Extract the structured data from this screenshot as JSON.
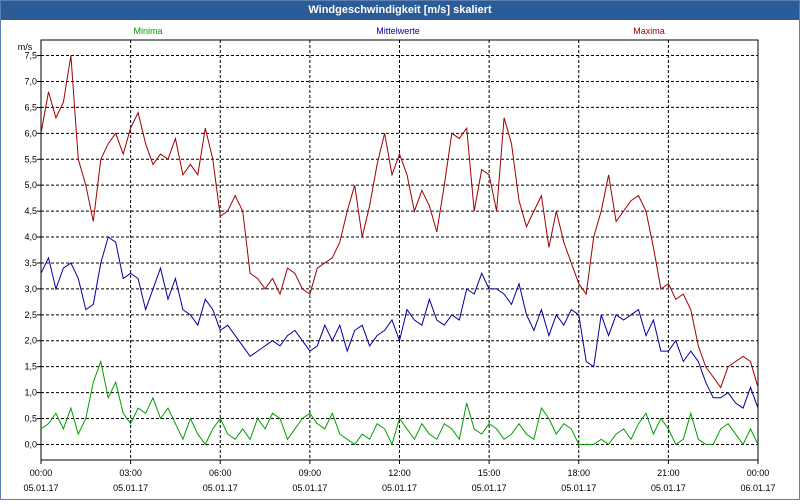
{
  "window": {
    "title": "Windgeschwindigkeit [m/s] skaliert"
  },
  "chart_data": {
    "type": "line",
    "ylabel": "m/s",
    "ylim": [
      -0.3,
      7.8
    ],
    "yticks": [
      "0,0",
      "0,5",
      "1,0",
      "1,5",
      "2,0",
      "2,5",
      "3,0",
      "3,5",
      "4,0",
      "4,5",
      "5,0",
      "5,5",
      "6,0",
      "6,5",
      "7,0",
      "7,5"
    ],
    "xticks": [
      {
        "time": "00:00",
        "date": "05.01.17"
      },
      {
        "time": "03:00",
        "date": "05.01.17"
      },
      {
        "time": "06:00",
        "date": "05.01.17"
      },
      {
        "time": "09:00",
        "date": "05.01.17"
      },
      {
        "time": "12:00",
        "date": "05.01.17"
      },
      {
        "time": "15:00",
        "date": "05.01.17"
      },
      {
        "time": "18:00",
        "date": "05.01.17"
      },
      {
        "time": "21:00",
        "date": "05.01.17"
      },
      {
        "time": "00:00",
        "date": "06.01.17"
      }
    ],
    "grid": true,
    "x_hours": [
      0,
      0.25,
      0.5,
      0.75,
      1,
      1.25,
      1.5,
      1.75,
      2,
      2.25,
      2.5,
      2.75,
      3,
      3.25,
      3.5,
      3.75,
      4,
      4.25,
      4.5,
      4.75,
      5,
      5.25,
      5.5,
      5.75,
      6,
      6.25,
      6.5,
      6.75,
      7,
      7.25,
      7.5,
      7.75,
      8,
      8.25,
      8.5,
      8.75,
      9,
      9.25,
      9.5,
      9.75,
      10,
      10.25,
      10.5,
      10.75,
      11,
      11.25,
      11.5,
      11.75,
      12,
      12.25,
      12.5,
      12.75,
      13,
      13.25,
      13.5,
      13.75,
      14,
      14.25,
      14.5,
      14.75,
      15,
      15.25,
      15.5,
      15.75,
      16,
      16.25,
      16.5,
      16.75,
      17,
      17.25,
      17.5,
      17.75,
      18,
      18.25,
      18.5,
      18.75,
      19,
      19.25,
      19.5,
      19.75,
      20,
      20.25,
      20.5,
      20.75,
      21,
      21.25,
      21.5,
      21.75,
      22,
      22.25,
      22.5,
      22.75,
      23,
      23.25,
      23.5,
      23.75,
      24
    ],
    "series": [
      {
        "name": "Minima",
        "color": "#00a000",
        "values": [
          0.3,
          0.4,
          0.6,
          0.3,
          0.7,
          0.2,
          0.5,
          1.2,
          1.6,
          0.9,
          1.2,
          0.6,
          0.4,
          0.7,
          0.6,
          0.9,
          0.5,
          0.7,
          0.4,
          0.1,
          0.5,
          0.2,
          0.0,
          0.3,
          0.5,
          0.2,
          0.1,
          0.3,
          0.1,
          0.5,
          0.3,
          0.6,
          0.5,
          0.1,
          0.3,
          0.5,
          0.6,
          0.4,
          0.3,
          0.6,
          0.2,
          0.1,
          0.0,
          0.2,
          0.1,
          0.4,
          0.3,
          0.0,
          0.5,
          0.3,
          0.1,
          0.4,
          0.2,
          0.1,
          0.4,
          0.3,
          0.1,
          0.8,
          0.3,
          0.2,
          0.4,
          0.3,
          0.1,
          0.2,
          0.4,
          0.2,
          0.1,
          0.7,
          0.5,
          0.2,
          0.4,
          0.3,
          0.0,
          0.0,
          0.0,
          0.1,
          0.0,
          0.2,
          0.3,
          0.1,
          0.4,
          0.6,
          0.2,
          0.5,
          0.3,
          0.0,
          0.1,
          0.6,
          0.1,
          0.0,
          0.0,
          0.3,
          0.4,
          0.2,
          0.0,
          0.3,
          0.0
        ]
      },
      {
        "name": "Mittelwerte",
        "color": "#0000a0",
        "values": [
          3.3,
          3.6,
          3.0,
          3.4,
          3.5,
          3.2,
          2.6,
          2.7,
          3.5,
          4.0,
          3.9,
          3.2,
          3.3,
          3.2,
          2.6,
          3.0,
          3.4,
          2.8,
          3.2,
          2.6,
          2.5,
          2.3,
          2.8,
          2.6,
          2.2,
          2.3,
          2.1,
          1.9,
          1.7,
          1.8,
          1.9,
          2.0,
          1.9,
          2.1,
          2.2,
          2.0,
          1.8,
          1.9,
          2.3,
          2.0,
          2.3,
          1.8,
          2.2,
          2.3,
          1.9,
          2.1,
          2.2,
          2.4,
          2.0,
          2.6,
          2.4,
          2.3,
          2.8,
          2.4,
          2.3,
          2.5,
          2.4,
          3.0,
          2.9,
          3.3,
          3.0,
          3.0,
          2.9,
          2.7,
          3.1,
          2.5,
          2.2,
          2.6,
          2.1,
          2.5,
          2.3,
          2.6,
          2.5,
          1.6,
          1.5,
          2.5,
          2.1,
          2.5,
          2.4,
          2.5,
          2.6,
          2.1,
          2.4,
          1.8,
          1.8,
          2.0,
          1.6,
          1.8,
          1.6,
          1.2,
          0.9,
          0.9,
          1.0,
          0.8,
          0.7,
          1.1,
          0.7
        ]
      },
      {
        "name": "Maxima",
        "color": "#a00000",
        "values": [
          6.0,
          6.8,
          6.3,
          6.6,
          7.5,
          5.5,
          5.0,
          4.3,
          5.5,
          5.8,
          6.0,
          5.6,
          6.1,
          6.4,
          5.8,
          5.4,
          5.6,
          5.5,
          5.9,
          5.2,
          5.4,
          5.2,
          6.1,
          5.5,
          4.4,
          4.5,
          4.8,
          4.5,
          3.3,
          3.2,
          3.0,
          3.2,
          2.9,
          3.4,
          3.3,
          3.0,
          2.9,
          3.4,
          3.5,
          3.6,
          3.9,
          4.5,
          5.0,
          4.0,
          4.6,
          5.4,
          6.0,
          5.2,
          5.6,
          5.2,
          4.5,
          4.9,
          4.6,
          4.1,
          5.0,
          6.0,
          5.9,
          6.1,
          4.5,
          5.3,
          5.2,
          4.5,
          6.3,
          5.8,
          4.7,
          4.2,
          4.5,
          4.8,
          3.8,
          4.5,
          3.9,
          3.5,
          3.1,
          2.9,
          4.0,
          4.5,
          5.2,
          4.3,
          4.5,
          4.7,
          4.8,
          4.5,
          3.8,
          3.0,
          3.1,
          2.8,
          2.9,
          2.6,
          1.9,
          1.5,
          1.3,
          1.1,
          1.5,
          1.6,
          1.7,
          1.6,
          1.1
        ]
      }
    ]
  }
}
